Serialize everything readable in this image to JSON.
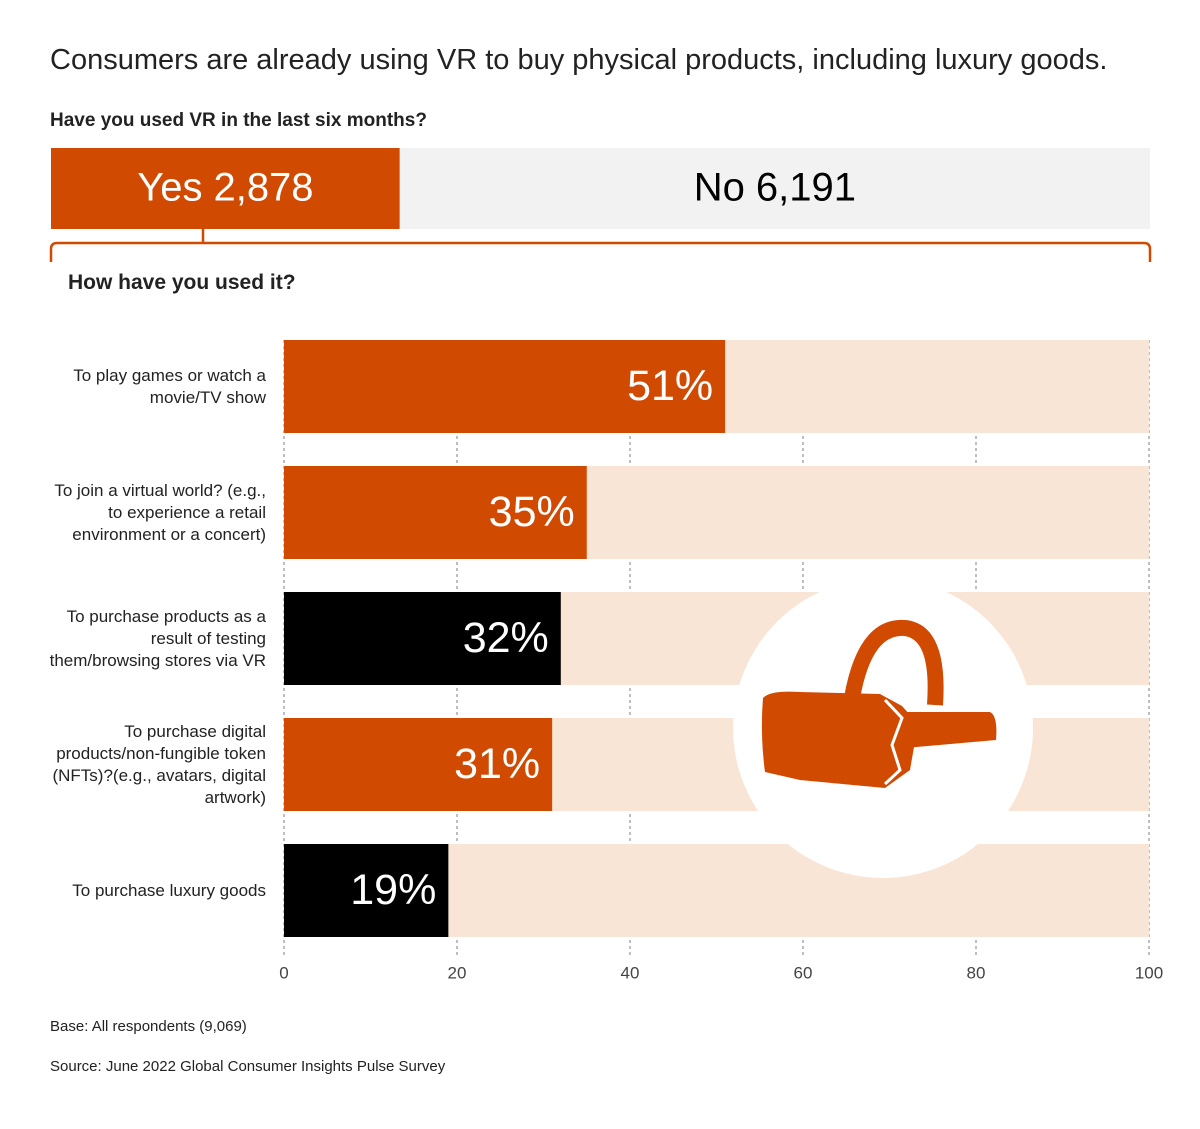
{
  "chart_data": [
    {
      "type": "share-bar",
      "title": "Consumers are already using VR to buy physical products, including luxury goods.",
      "subtitle": "Have you used VR in the last six months?",
      "categories": [
        "Yes",
        "No"
      ],
      "values": [
        2878,
        6191
      ],
      "value_labels": [
        "2,878",
        "6,191"
      ],
      "colors": [
        "#d04a02",
        "#f2f2f2"
      ],
      "label_colors": [
        "#ffffff",
        "#000000"
      ]
    },
    {
      "type": "hbar",
      "title": "How have you used it?",
      "categories": [
        "To play games or watch a movie/TV show",
        "To join a virtual world? (e.g., to experience a retail environment or a concert)",
        "To purchase products as a result of testing them/browsing stores via VR",
        "To purchase digital products/non-fungible token (NFTs)?(e.g., avatars, digital artwork)",
        "To purchase luxury goods"
      ],
      "values": [
        51,
        35,
        32,
        31,
        19
      ],
      "value_labels": [
        "51%",
        "35%",
        "32%",
        "31%",
        "19%"
      ],
      "colors": [
        "#d04a02",
        "#d04a02",
        "#000000",
        "#d04a02",
        "#000000"
      ],
      "track_color": "#f8e5d5",
      "xlim": [
        0,
        100
      ],
      "xticks": [
        0,
        20,
        40,
        60,
        80,
        100
      ],
      "grid": true
    }
  ],
  "notes": [
    "Base: All respondents (9,069)",
    "Source: June 2022 Global Consumer Insights Pulse Survey"
  ]
}
